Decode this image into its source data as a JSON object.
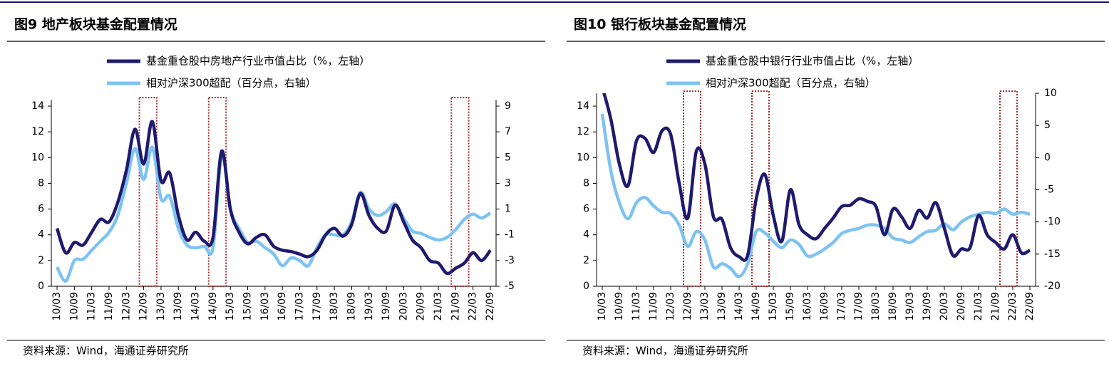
{
  "chart_data": [
    {
      "type": "line",
      "title": "图9  地产板块基金配置情况",
      "source": "资料来源：Wind，海通证券研究所",
      "categories": [
        "10/03",
        null,
        "10/09",
        null,
        "11/03",
        null,
        "11/09",
        null,
        "12/03",
        null,
        "12/09",
        null,
        "13/03",
        null,
        "13/09",
        null,
        "14/03",
        null,
        "14/09",
        null,
        "15/03",
        null,
        "15/09",
        null,
        "16/03",
        null,
        "16/09",
        null,
        "17/03",
        null,
        "17/09",
        null,
        "18/03",
        null,
        "18/09",
        null,
        "19/03",
        null,
        "19/09",
        null,
        "20/03",
        null,
        "20/09",
        null,
        "21/03",
        null,
        "21/09",
        null,
        "22/03",
        null,
        "22/09"
      ],
      "series": [
        {
          "name": "基金重仓股中房地产行业市值占比（%，左轴）",
          "color": "#1f1a6e",
          "axis": "y",
          "values": [
            4.5,
            2.6,
            3.4,
            3.2,
            4.2,
            5.2,
            5.0,
            6.5,
            9.0,
            12.2,
            9.5,
            12.8,
            8.2,
            8.8,
            5.5,
            3.6,
            4.2,
            3.5,
            3.8,
            10.5,
            6.0,
            4.2,
            3.3,
            3.8,
            4.0,
            3.1,
            2.8,
            2.7,
            2.5,
            2.3,
            2.8,
            4.0,
            4.5,
            3.9,
            4.8,
            7.2,
            5.5,
            4.5,
            4.3,
            6.3,
            5.0,
            3.6,
            3.0,
            2.0,
            1.8,
            1.0,
            1.4,
            1.8,
            2.6,
            2.0,
            2.8
          ]
        },
        {
          "name": "相对沪深300超配（百分点，右轴）",
          "color": "#7ec3f0",
          "axis": "y2",
          "values": [
            -3.5,
            -4.6,
            -3.0,
            -2.9,
            -2.2,
            -1.5,
            -0.8,
            0.5,
            3.0,
            5.7,
            3.3,
            5.8,
            1.8,
            2.0,
            -0.5,
            -1.8,
            -2.0,
            -1.9,
            -2.0,
            5.2,
            1.0,
            -0.5,
            -1.6,
            -1.5,
            -2.0,
            -2.5,
            -3.4,
            -2.8,
            -3.0,
            -3.4,
            -2.0,
            -1.0,
            -1.0,
            -1.0,
            0.0,
            2.3,
            1.0,
            0.5,
            0.8,
            1.4,
            0.3,
            -0.7,
            -0.9,
            -1.2,
            -1.4,
            -1.2,
            -0.6,
            0.2,
            0.6,
            0.3,
            0.7
          ]
        }
      ],
      "ylim": [
        0,
        14
      ],
      "yticks": [
        0,
        2,
        4,
        6,
        8,
        10,
        12,
        14
      ],
      "y2lim": [
        -5,
        9
      ],
      "y2ticks": [
        -5,
        -3,
        -1,
        1,
        3,
        5,
        7,
        9
      ],
      "highlight_ranges": [
        [
          10,
          11
        ],
        [
          18,
          19
        ],
        [
          46,
          47
        ]
      ],
      "highlight_color": "#a52a2a"
    },
    {
      "type": "line",
      "title": "图10 银行板块基金配置情况",
      "source": "资料来源：Wind，海通证券研究所",
      "categories": [
        "10/03",
        null,
        "10/09",
        null,
        "11/03",
        null,
        "11/09",
        null,
        "12/03",
        null,
        "12/09",
        null,
        "13/03",
        null,
        "13/09",
        null,
        "14/03",
        null,
        "14/09",
        null,
        "15/03",
        null,
        "15/09",
        null,
        "16/03",
        null,
        "16/09",
        null,
        "17/03",
        null,
        "17/09",
        null,
        "18/03",
        null,
        "18/09",
        null,
        "19/03",
        null,
        "19/09",
        null,
        "20/03",
        null,
        "20/09",
        null,
        "21/03",
        null,
        "21/09",
        null,
        "22/03",
        null,
        "22/09"
      ],
      "series": [
        {
          "name": "基金重仓股中银行行业市值占比（%，左轴）",
          "color": "#1f1a6e",
          "axis": "y",
          "values": [
            15.5,
            13,
            9.5,
            7.8,
            11.3,
            11.5,
            10.4,
            12.1,
            11.8,
            8.0,
            5.3,
            10.5,
            9.5,
            5.4,
            5.2,
            3.0,
            2.3,
            2.4,
            6.8,
            8.7,
            5.5,
            3.5,
            7.5,
            4.8,
            4.0,
            3.7,
            4.5,
            5.3,
            6.2,
            6.3,
            6.8,
            6.6,
            6.2,
            4.0,
            6.0,
            5.4,
            4.5,
            5.9,
            5.3,
            6.5,
            4.5,
            2.4,
            2.9,
            3.0,
            5.5,
            4.0,
            3.4,
            2.9,
            4.0,
            2.6,
            2.8
          ]
        },
        {
          "name": "相对沪深300超配（百分点，右轴）",
          "color": "#7ec3f0",
          "axis": "y2",
          "values": [
            6.8,
            -2,
            -7,
            -9.5,
            -7,
            -6.2,
            -7.5,
            -8.5,
            -8.7,
            -10.5,
            -13.8,
            -11.5,
            -12.8,
            -17,
            -16.5,
            -17.2,
            -18.5,
            -16.5,
            -11.5,
            -11.7,
            -13,
            -14,
            -12.8,
            -13.5,
            -15.3,
            -15,
            -14.2,
            -13.2,
            -11.8,
            -11.3,
            -11,
            -10.5,
            -10.5,
            -11,
            -12.5,
            -12.8,
            -13.2,
            -12.3,
            -11.5,
            -11.3,
            -10.3,
            -11.2,
            -10,
            -9.2,
            -8.8,
            -8.5,
            -8.7,
            -8,
            -8.8,
            -8.5,
            -8.8
          ]
        }
      ],
      "ylim": [
        0,
        15
      ],
      "yticks": [
        0,
        2,
        4,
        6,
        8,
        10,
        12,
        14
      ],
      "y2lim": [
        -20,
        10
      ],
      "y2ticks": [
        -20,
        -15,
        -10,
        -5,
        0,
        5,
        10
      ],
      "highlight_ranges": [
        [
          10,
          11
        ],
        [
          18,
          19
        ],
        [
          47,
          48
        ]
      ],
      "highlight_color": "#a52a2a"
    }
  ]
}
